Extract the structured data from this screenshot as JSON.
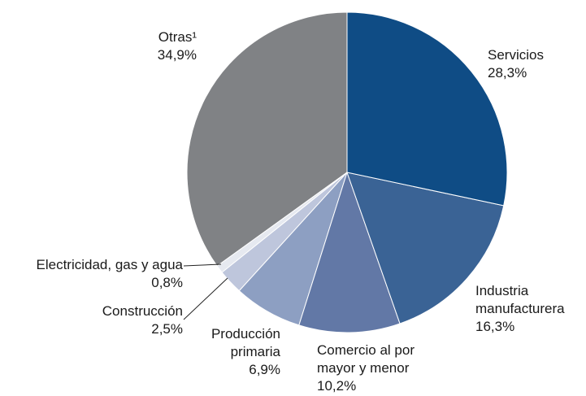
{
  "chart_data": {
    "type": "pie",
    "categories": [
      "Servicios",
      "Industria manufacturera",
      "Comercio al por mayor y menor",
      "Producción primaria",
      "Construcción",
      "Electricidad, gas y agua",
      "Otras¹"
    ],
    "values": [
      28.3,
      16.3,
      10.2,
      6.9,
      2.5,
      0.8,
      34.9
    ],
    "value_labels": [
      "28,3%",
      "16,3%",
      "10,2%",
      "6,9%",
      "2,5%",
      "0,8%",
      "34,9%"
    ],
    "colors": [
      "#0f4c85",
      "#3a6395",
      "#6278a6",
      "#8d9fc2",
      "#bec6dc",
      "#e6e9f0",
      "#808285"
    ]
  }
}
